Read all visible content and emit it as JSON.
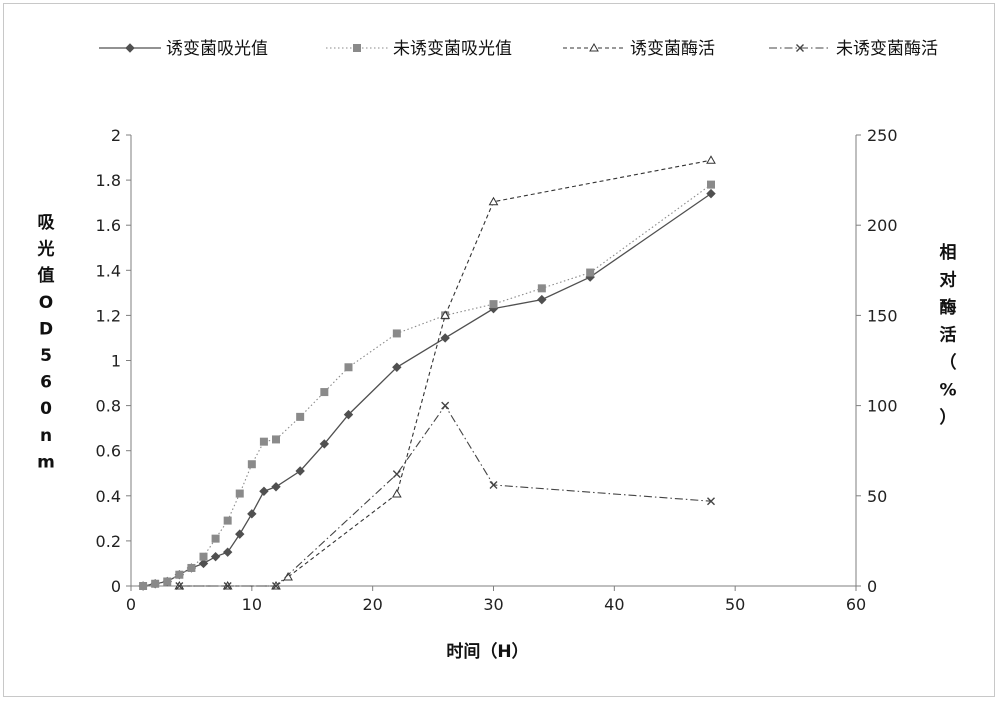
{
  "chart_data": {
    "type": "line",
    "xlabel": "时间（H）",
    "ylabel_left": "吸光值OD560nm",
    "ylabel_right": "相对酶活（%）",
    "xlim": [
      0,
      60
    ],
    "ylim_left": [
      0,
      2
    ],
    "ylim_right": [
      0,
      250
    ],
    "x_ticks": [
      "0",
      "10",
      "20",
      "30",
      "40",
      "50",
      "60"
    ],
    "y_left_ticks": [
      "0",
      "0.2",
      "0.4",
      "0.6",
      "0.8",
      "1",
      "1.2",
      "1.4",
      "1.6",
      "1.8",
      "2"
    ],
    "y_right_ticks": [
      "0",
      "50",
      "100",
      "150",
      "200",
      "250"
    ],
    "grid": false,
    "legend_position": "top",
    "series": [
      {
        "name": "诱变菌吸光值",
        "axis": "left",
        "style": "solid",
        "marker": "diamond",
        "color": "#505050",
        "x": [
          1,
          2,
          3,
          4,
          5,
          6,
          7,
          8,
          9,
          10,
          11,
          12,
          14,
          16,
          18,
          22,
          26,
          30,
          34,
          38,
          48
        ],
        "y": [
          0.0,
          0.01,
          0.02,
          0.05,
          0.08,
          0.1,
          0.13,
          0.15,
          0.23,
          0.32,
          0.42,
          0.44,
          0.51,
          0.63,
          0.76,
          0.97,
          1.1,
          1.23,
          1.27,
          1.37,
          1.74
        ]
      },
      {
        "name": "未诱变菌吸光值",
        "axis": "left",
        "style": "dotted",
        "marker": "square",
        "color": "#8a8a8a",
        "x": [
          1,
          2,
          3,
          4,
          5,
          6,
          7,
          8,
          9,
          10,
          11,
          12,
          14,
          16,
          18,
          22,
          26,
          30,
          34,
          38,
          48
        ],
        "y": [
          0.0,
          0.01,
          0.02,
          0.05,
          0.08,
          0.13,
          0.21,
          0.29,
          0.41,
          0.54,
          0.64,
          0.65,
          0.75,
          0.86,
          0.97,
          1.12,
          1.2,
          1.25,
          1.32,
          1.39,
          1.78
        ]
      },
      {
        "name": "诱变菌酶活",
        "axis": "right",
        "style": "dashed",
        "marker": "triangle",
        "color": "#333333",
        "x": [
          4,
          8,
          12,
          13,
          22,
          26,
          30,
          48
        ],
        "y": [
          0,
          0,
          0,
          5,
          51,
          150,
          213,
          236
        ]
      },
      {
        "name": "未诱变菌酶活",
        "axis": "right",
        "style": "dashdot",
        "marker": "cross",
        "color": "#444444",
        "x": [
          4,
          8,
          12,
          22,
          26,
          30,
          48
        ],
        "y": [
          0,
          0,
          0,
          62,
          100,
          56,
          47
        ]
      }
    ]
  }
}
